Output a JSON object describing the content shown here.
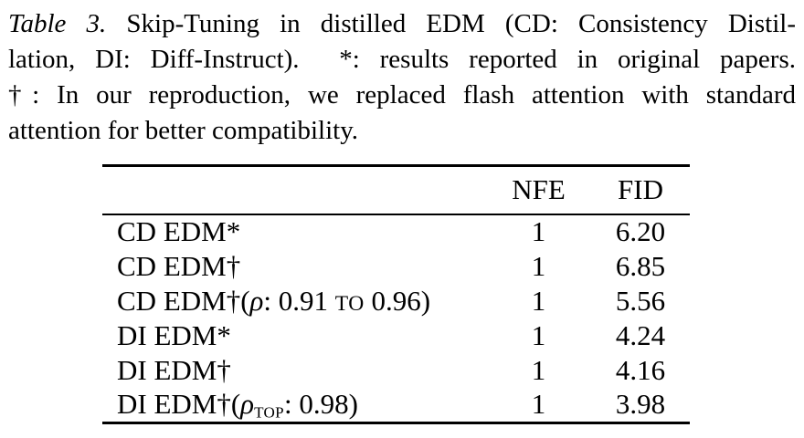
{
  "caption": {
    "lines": [
      [
        {
          "text": "Table 3.",
          "style": "italic"
        },
        {
          "text": " Skip-Tuning in distilled EDM (CD: Consistency Distil-"
        }
      ],
      [
        {
          "text": "lation, DI: Diff-Instruct).  *: results reported in original papers."
        }
      ],
      [
        {
          "text": "†: In our reproduction, we replaced flash attention with standard"
        }
      ],
      [
        {
          "text": "attention for better compatibility."
        }
      ]
    ]
  },
  "table": {
    "header": {
      "method": "",
      "nfe": "NFE",
      "fid": "FID"
    },
    "rows": [
      {
        "method": [
          {
            "text": "CD EDM*"
          }
        ],
        "nfe": "1",
        "fid": "6.20"
      },
      {
        "method": [
          {
            "text": "CD EDM†"
          }
        ],
        "nfe": "1",
        "fid": "6.85"
      },
      {
        "method": [
          {
            "text": "CD EDM†("
          },
          {
            "text": "ρ",
            "style": "italic"
          },
          {
            "text": ": 0.91 "
          },
          {
            "text": "to",
            "style": "smallcaps"
          },
          {
            "text": " 0.96)"
          }
        ],
        "nfe": "1",
        "fid": "5.56"
      },
      {
        "method": [
          {
            "text": "DI EDM*"
          }
        ],
        "nfe": "1",
        "fid": "4.24"
      },
      {
        "method": [
          {
            "text": "DI EDM†"
          }
        ],
        "nfe": "1",
        "fid": "4.16"
      },
      {
        "method": [
          {
            "text": "DI EDM†("
          },
          {
            "text": "ρ",
            "style": "italic"
          },
          {
            "text": "top",
            "style": "smallcaps-sub"
          },
          {
            "text": ": 0.98)"
          }
        ],
        "nfe": "1",
        "fid": "3.98"
      }
    ]
  }
}
